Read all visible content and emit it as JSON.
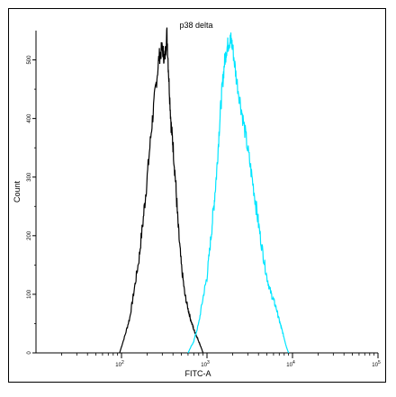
{
  "chart_data": {
    "type": "line",
    "title": "p38 delta",
    "xlabel": "FITC-A",
    "ylabel": "Count",
    "x_scale": "log",
    "xlim": [
      10,
      100000
    ],
    "ylim": [
      0,
      550
    ],
    "x_ticks": [
      {
        "value": 100,
        "base": "10",
        "exp": "2"
      },
      {
        "value": 1000,
        "base": "10",
        "exp": "3"
      },
      {
        "value": 10000,
        "base": "10",
        "exp": "4"
      },
      {
        "value": 100000,
        "base": "10",
        "exp": "5"
      }
    ],
    "y_ticks": [
      0,
      100,
      200,
      300,
      400,
      500
    ],
    "grid": false,
    "series": [
      {
        "color": "#000000",
        "x": [
          95,
          110,
          125,
          140,
          160,
          180,
          200,
          225,
          250,
          275,
          300,
          320,
          340,
          360,
          380,
          400,
          430,
          460,
          500,
          550,
          600,
          650,
          700,
          750,
          800,
          850,
          900
        ],
        "values": [
          0,
          30,
          60,
          105,
          160,
          230,
          300,
          385,
          450,
          505,
          520,
          500,
          545,
          460,
          390,
          355,
          290,
          215,
          150,
          100,
          75,
          55,
          40,
          30,
          20,
          10,
          0
        ]
      },
      {
        "color": "#00e5ff",
        "x": [
          600,
          700,
          800,
          900,
          1000,
          1100,
          1200,
          1300,
          1400,
          1500,
          1600,
          1700,
          1800,
          1900,
          2000,
          2200,
          2500,
          2800,
          3200,
          3600,
          4000,
          4500,
          5000,
          5500,
          6000,
          6500,
          7000,
          7500,
          8000,
          8500,
          9000
        ],
        "values": [
          0,
          20,
          50,
          95,
          130,
          190,
          250,
          310,
          390,
          450,
          495,
          520,
          530,
          535,
          520,
          470,
          420,
          375,
          320,
          270,
          220,
          170,
          130,
          105,
          90,
          75,
          55,
          40,
          25,
          10,
          0
        ]
      }
    ]
  }
}
